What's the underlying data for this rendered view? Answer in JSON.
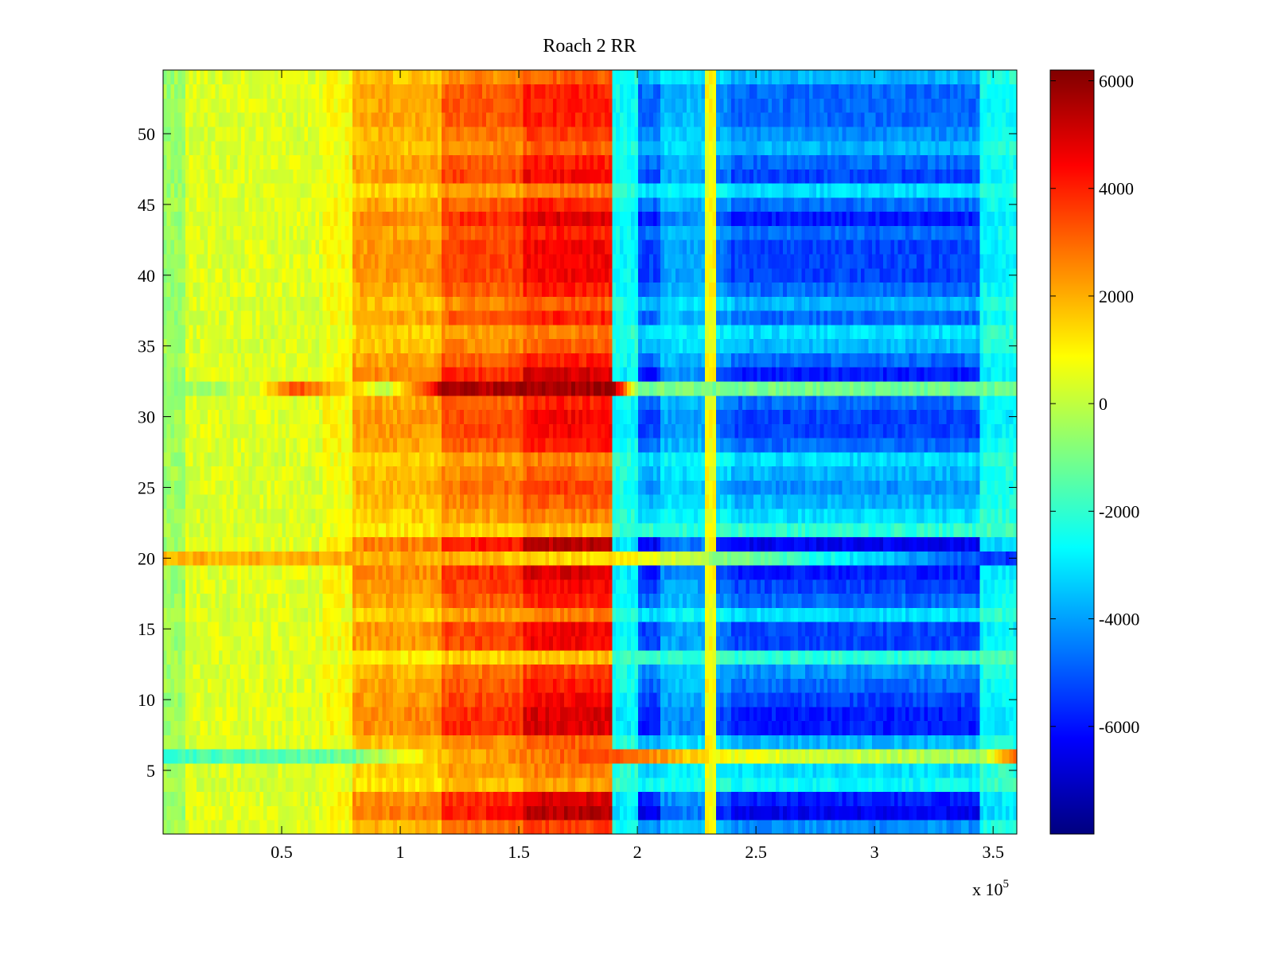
{
  "chart_data": {
    "type": "heatmap",
    "title": "Roach 2 RR",
    "xlabel": "",
    "ylabel": "",
    "x_multiplier": {
      "base": "x 10",
      "exponent": "5"
    },
    "x_range": [
      0,
      360000
    ],
    "y_range": [
      0.5,
      54.5
    ],
    "x_ticks": [
      50000,
      100000,
      150000,
      200000,
      250000,
      300000,
      350000
    ],
    "x_tick_labels": [
      "0.5",
      "1",
      "1.5",
      "2",
      "2.5",
      "3",
      "3.5"
    ],
    "y_ticks": [
      5,
      10,
      15,
      20,
      25,
      30,
      35,
      40,
      45,
      50
    ],
    "y_tick_labels": [
      "5",
      "10",
      "15",
      "20",
      "25",
      "30",
      "35",
      "40",
      "45",
      "50"
    ],
    "colorbar": {
      "range": [
        -8000,
        6200
      ],
      "colormap": "jet",
      "ticks": [
        6000,
        4000,
        2000,
        0,
        -2000,
        -4000,
        -6000
      ],
      "tick_labels": [
        "6000",
        "4000",
        "2000",
        "0",
        "-2000",
        "-4000",
        "-6000"
      ]
    },
    "rows": 54,
    "x_segments": {
      "x": [
        0,
        10000,
        67500,
        80000,
        117500,
        152500,
        190000,
        200000,
        210000,
        228000,
        233500,
        239000,
        345000,
        360000
      ],
      "typical_values": [
        -500,
        400,
        800,
        2000,
        3000,
        3800,
        -2500,
        -4500,
        -3500,
        800,
        -4000,
        -4500,
        -2500
      ],
      "amplitude": [
        0.15,
        0.4,
        0.6,
        0.8,
        0.9,
        1.0,
        0.5,
        1.0,
        0.7,
        0.2,
        1.0,
        1.0,
        0.6
      ]
    },
    "row_strength": [
      0.7,
      1.1,
      1.0,
      0.4,
      0.5,
      0.3,
      0.6,
      1.0,
      1.0,
      0.9,
      0.8,
      0.7,
      0.3,
      0.9,
      0.9,
      0.5,
      0.8,
      0.9,
      1.0,
      1.1,
      1.1,
      0.3,
      0.5,
      0.6,
      0.7,
      0.6,
      0.5,
      0.8,
      0.9,
      0.9,
      0.8,
      1.3,
      1.0,
      0.8,
      0.6,
      0.5,
      0.8,
      0.6,
      0.8,
      0.9,
      0.9,
      0.9,
      0.8,
      1.0,
      0.8,
      0.5,
      0.9,
      0.8,
      0.6,
      0.7,
      0.8,
      0.8,
      0.8,
      0.6
    ],
    "special_rows": [
      {
        "row": 6,
        "x": [
          0,
          80000,
          117500,
          190000,
          228000,
          239000,
          345000,
          360000
        ],
        "values": [
          -1800,
          -1200,
          1800,
          3600,
          1200,
          600,
          -400,
          3200
        ]
      },
      {
        "row": 20,
        "x": [
          0,
          117500,
          190000,
          360000
        ],
        "values": [
          2000,
          2000,
          1200,
          -5800
        ]
      },
      {
        "row": 32,
        "x": [
          0,
          40000,
          55000,
          95000,
          117500,
          190000,
          200000,
          360000
        ],
        "values": [
          -800,
          300,
          3500,
          0,
          5500,
          5800,
          -1000,
          -1200
        ]
      }
    ],
    "grid": false,
    "legend": "colorbar-right"
  }
}
